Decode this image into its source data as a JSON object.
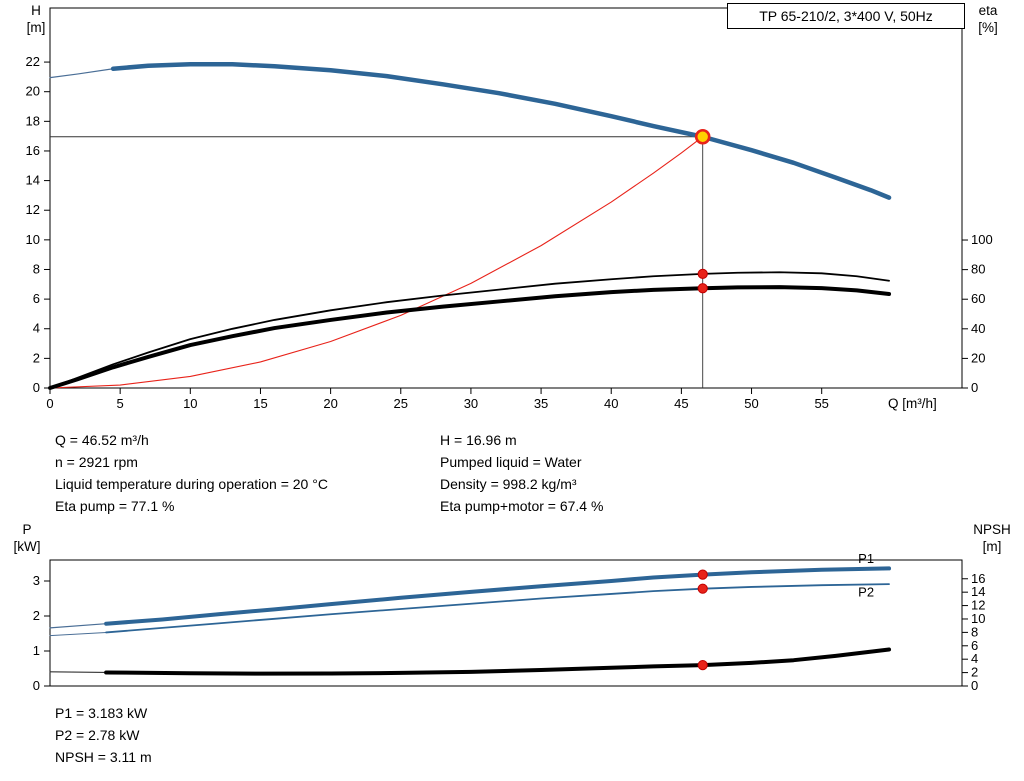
{
  "colors": {
    "curve_blue": "#2d6596",
    "curve_black": "#000000",
    "marker_red": "#e8231a",
    "duty_yellow": "#ffd200",
    "crosshair": "#333333"
  },
  "readout_top": {
    "left": [
      "Q = 46.52 m³/h",
      "n = 2921 rpm",
      "Liquid temperature during operation = 20 °C",
      "Eta pump = 77.1 %"
    ],
    "right": [
      "H = 16.96 m",
      "Pumped liquid = Water",
      "Density = 998.2 kg/m³",
      "Eta pump+motor = 67.4 %"
    ]
  },
  "readout_bottom": [
    "P1 = 3.183 kW",
    "P2 = 2.78 kW",
    "NPSH = 3.11 m"
  ],
  "chart_data": [
    {
      "type": "line",
      "title": "TP 65-210/2, 3*400 V, 50Hz",
      "grid": false,
      "x_axis": {
        "label": "Q [m³/h]",
        "min": 0,
        "max": 65,
        "ticks": [
          0,
          5,
          10,
          15,
          20,
          25,
          30,
          35,
          40,
          45,
          50,
          55
        ]
      },
      "y_left": {
        "label_lines": [
          "H",
          "[m]"
        ],
        "min": 0,
        "max": 25.65,
        "ticks": [
          0,
          2,
          4,
          6,
          8,
          10,
          12,
          14,
          16,
          18,
          20,
          22
        ]
      },
      "y_right": {
        "label_lines": [
          "eta",
          "[%]"
        ],
        "min": 0,
        "max": 256.8,
        "ticks": [
          0,
          20,
          40,
          60,
          80,
          100
        ]
      },
      "duty_point": {
        "Q": 46.52,
        "H": 16.96,
        "eta_pump": 77.1,
        "eta_pump_motor": 67.4
      },
      "series": [
        {
          "name": "head-curve-lead",
          "axis": "left",
          "color": "#4a6e96",
          "width": 1.2,
          "points": [
            [
              0,
              20.95
            ],
            [
              2,
              21.2
            ],
            [
              4.5,
              21.55
            ]
          ]
        },
        {
          "name": "head-curve",
          "axis": "left",
          "color": "#2d6596",
          "width": 4.5,
          "points": [
            [
              4.5,
              21.55
            ],
            [
              7,
              21.75
            ],
            [
              10,
              21.85
            ],
            [
              13,
              21.85
            ],
            [
              16,
              21.72
            ],
            [
              20,
              21.45
            ],
            [
              24,
              21.05
            ],
            [
              28,
              20.5
            ],
            [
              32,
              19.9
            ],
            [
              36,
              19.18
            ],
            [
              40,
              18.35
            ],
            [
              43,
              17.68
            ],
            [
              46.52,
              16.96
            ],
            [
              50,
              16.05
            ],
            [
              53,
              15.2
            ],
            [
              56,
              14.2
            ],
            [
              58.5,
              13.35
            ],
            [
              59.8,
              12.85
            ]
          ]
        },
        {
          "name": "system-curve",
          "axis": "left",
          "color": "#e8231a",
          "width": 1.1,
          "points": [
            [
              0,
              0
            ],
            [
              5,
              0.2
            ],
            [
              10,
              0.78
            ],
            [
              15,
              1.76
            ],
            [
              20,
              3.14
            ],
            [
              25,
              4.9
            ],
            [
              30,
              7.06
            ],
            [
              35,
              9.61
            ],
            [
              40,
              12.55
            ],
            [
              43,
              14.5
            ],
            [
              45,
              15.87
            ],
            [
              46.52,
              16.96
            ]
          ]
        },
        {
          "name": "eta-pump-curve",
          "axis": "right",
          "color": "#000000",
          "width": 1.8,
          "points": [
            [
              0,
              0
            ],
            [
              2,
              7
            ],
            [
              4.5,
              16
            ],
            [
              7,
              24
            ],
            [
              10,
              33
            ],
            [
              13,
              40
            ],
            [
              16,
              46
            ],
            [
              20,
              52.5
            ],
            [
              24,
              58
            ],
            [
              28,
              62.5
            ],
            [
              32,
              66.5
            ],
            [
              36,
              70.5
            ],
            [
              40,
              73.5
            ],
            [
              43,
              75.5
            ],
            [
              46.52,
              77.1
            ],
            [
              49,
              77.9
            ],
            [
              52,
              78.2
            ],
            [
              55,
              77.5
            ],
            [
              57.5,
              75.5
            ],
            [
              59.8,
              72.5
            ]
          ]
        },
        {
          "name": "eta-pump-motor-curve",
          "axis": "right",
          "color": "#000000",
          "width": 4,
          "points": [
            [
              0,
              0
            ],
            [
              2,
              6
            ],
            [
              4.5,
              14
            ],
            [
              7,
              21
            ],
            [
              10,
              29
            ],
            [
              13,
              35
            ],
            [
              16,
              40.5
            ],
            [
              20,
              46
            ],
            [
              24,
              51
            ],
            [
              28,
              55
            ],
            [
              32,
              58.5
            ],
            [
              36,
              62
            ],
            [
              40,
              64.8
            ],
            [
              43,
              66.3
            ],
            [
              46.52,
              67.4
            ],
            [
              49,
              68
            ],
            [
              52,
              68.2
            ],
            [
              55,
              67.5
            ],
            [
              57.5,
              66
            ],
            [
              59.8,
              63.5
            ]
          ]
        }
      ],
      "markers": [
        {
          "name": "duty-point",
          "axis": "left",
          "x": 46.52,
          "y": 16.96,
          "r": 6.5,
          "fill": "#ffd200",
          "stroke": "#e8231a",
          "stroke_width": 2.6,
          "crosshair": true
        },
        {
          "name": "eta-pump-point",
          "axis": "right",
          "x": 46.52,
          "y": 77.1,
          "r": 4.6,
          "fill": "#e8231a",
          "stroke": "#c00000",
          "stroke_width": 1,
          "crosshair": false
        },
        {
          "name": "eta-pump-motor-point",
          "axis": "right",
          "x": 46.52,
          "y": 67.4,
          "r": 4.6,
          "fill": "#e8231a",
          "stroke": "#c00000",
          "stroke_width": 1,
          "crosshair": false
        }
      ],
      "annotations": []
    },
    {
      "type": "line",
      "title": "",
      "grid": false,
      "x_axis": {
        "label": "",
        "min": 0,
        "max": 65,
        "ticks": []
      },
      "y_left": {
        "label_lines": [
          "P",
          "[kW]"
        ],
        "min": 0,
        "max": 3.6,
        "ticks": [
          0,
          1,
          2,
          3
        ]
      },
      "y_right": {
        "label_lines": [
          "NPSH",
          "[m]"
        ],
        "min": 0,
        "max": 18.8,
        "ticks": [
          0,
          2,
          4,
          6,
          8,
          10,
          12,
          14,
          16
        ]
      },
      "duty_point": {
        "Q": 46.52,
        "P1": 3.183,
        "P2": 2.78,
        "NPSH": 3.11
      },
      "series": [
        {
          "name": "p1-curve-lead",
          "axis": "left",
          "color": "#4a6e96",
          "width": 1.2,
          "points": [
            [
              0,
              1.66
            ],
            [
              4,
              1.78
            ]
          ]
        },
        {
          "name": "p1-curve",
          "axis": "left",
          "color": "#2d6596",
          "width": 4,
          "points": [
            [
              4,
              1.78
            ],
            [
              8,
              1.9
            ],
            [
              12,
              2.05
            ],
            [
              16,
              2.19
            ],
            [
              20,
              2.34
            ],
            [
              25,
              2.52
            ],
            [
              30,
              2.69
            ],
            [
              35,
              2.85
            ],
            [
              40,
              3.0
            ],
            [
              43,
              3.1
            ],
            [
              46.52,
              3.183
            ],
            [
              50,
              3.25
            ],
            [
              55,
              3.32
            ],
            [
              59.8,
              3.36
            ]
          ]
        },
        {
          "name": "p2-curve-lead",
          "axis": "left",
          "color": "#4a6e96",
          "width": 1,
          "points": [
            [
              0,
              1.44
            ],
            [
              4,
              1.53
            ]
          ]
        },
        {
          "name": "p2-curve",
          "axis": "left",
          "color": "#2d6596",
          "width": 1.8,
          "points": [
            [
              4,
              1.53
            ],
            [
              8,
              1.66
            ],
            [
              12,
              1.79
            ],
            [
              16,
              1.92
            ],
            [
              20,
              2.05
            ],
            [
              25,
              2.2
            ],
            [
              30,
              2.35
            ],
            [
              35,
              2.5
            ],
            [
              40,
              2.63
            ],
            [
              43,
              2.71
            ],
            [
              46.52,
              2.78
            ],
            [
              50,
              2.83
            ],
            [
              55,
              2.88
            ],
            [
              59.8,
              2.91
            ]
          ]
        },
        {
          "name": "npsh-curve-lead",
          "axis": "right",
          "color": "#333333",
          "width": 1.2,
          "points": [
            [
              0,
              2.12
            ],
            [
              4,
              2.02
            ]
          ]
        },
        {
          "name": "npsh-curve",
          "axis": "right",
          "color": "#000000",
          "width": 4,
          "points": [
            [
              4,
              2.02
            ],
            [
              10,
              1.9
            ],
            [
              15,
              1.85
            ],
            [
              20,
              1.86
            ],
            [
              25,
              1.95
            ],
            [
              30,
              2.1
            ],
            [
              35,
              2.38
            ],
            [
              40,
              2.72
            ],
            [
              43,
              2.92
            ],
            [
              46.52,
              3.11
            ],
            [
              50,
              3.45
            ],
            [
              53,
              3.85
            ],
            [
              56,
              4.5
            ],
            [
              59.8,
              5.45
            ]
          ]
        }
      ],
      "markers": [
        {
          "name": "p1-point",
          "axis": "left",
          "x": 46.52,
          "y": 3.183,
          "r": 4.6,
          "fill": "#e8231a",
          "stroke": "#c00000",
          "stroke_width": 1,
          "crosshair": false
        },
        {
          "name": "p2-point",
          "axis": "left",
          "x": 46.52,
          "y": 2.78,
          "r": 4.6,
          "fill": "#e8231a",
          "stroke": "#c00000",
          "stroke_width": 1,
          "crosshair": false
        },
        {
          "name": "npsh-point",
          "axis": "right",
          "x": 46.52,
          "y": 3.11,
          "r": 4.6,
          "fill": "#e8231a",
          "stroke": "#c00000",
          "stroke_width": 1,
          "crosshair": false
        }
      ],
      "annotations": [
        {
          "text": "P1",
          "x": 57.6,
          "y": 3.52,
          "axis": "left",
          "color": "#2d6596"
        },
        {
          "text": "P2",
          "x": 57.6,
          "y": 2.56,
          "axis": "left",
          "color": "#2d6596"
        }
      ]
    }
  ]
}
